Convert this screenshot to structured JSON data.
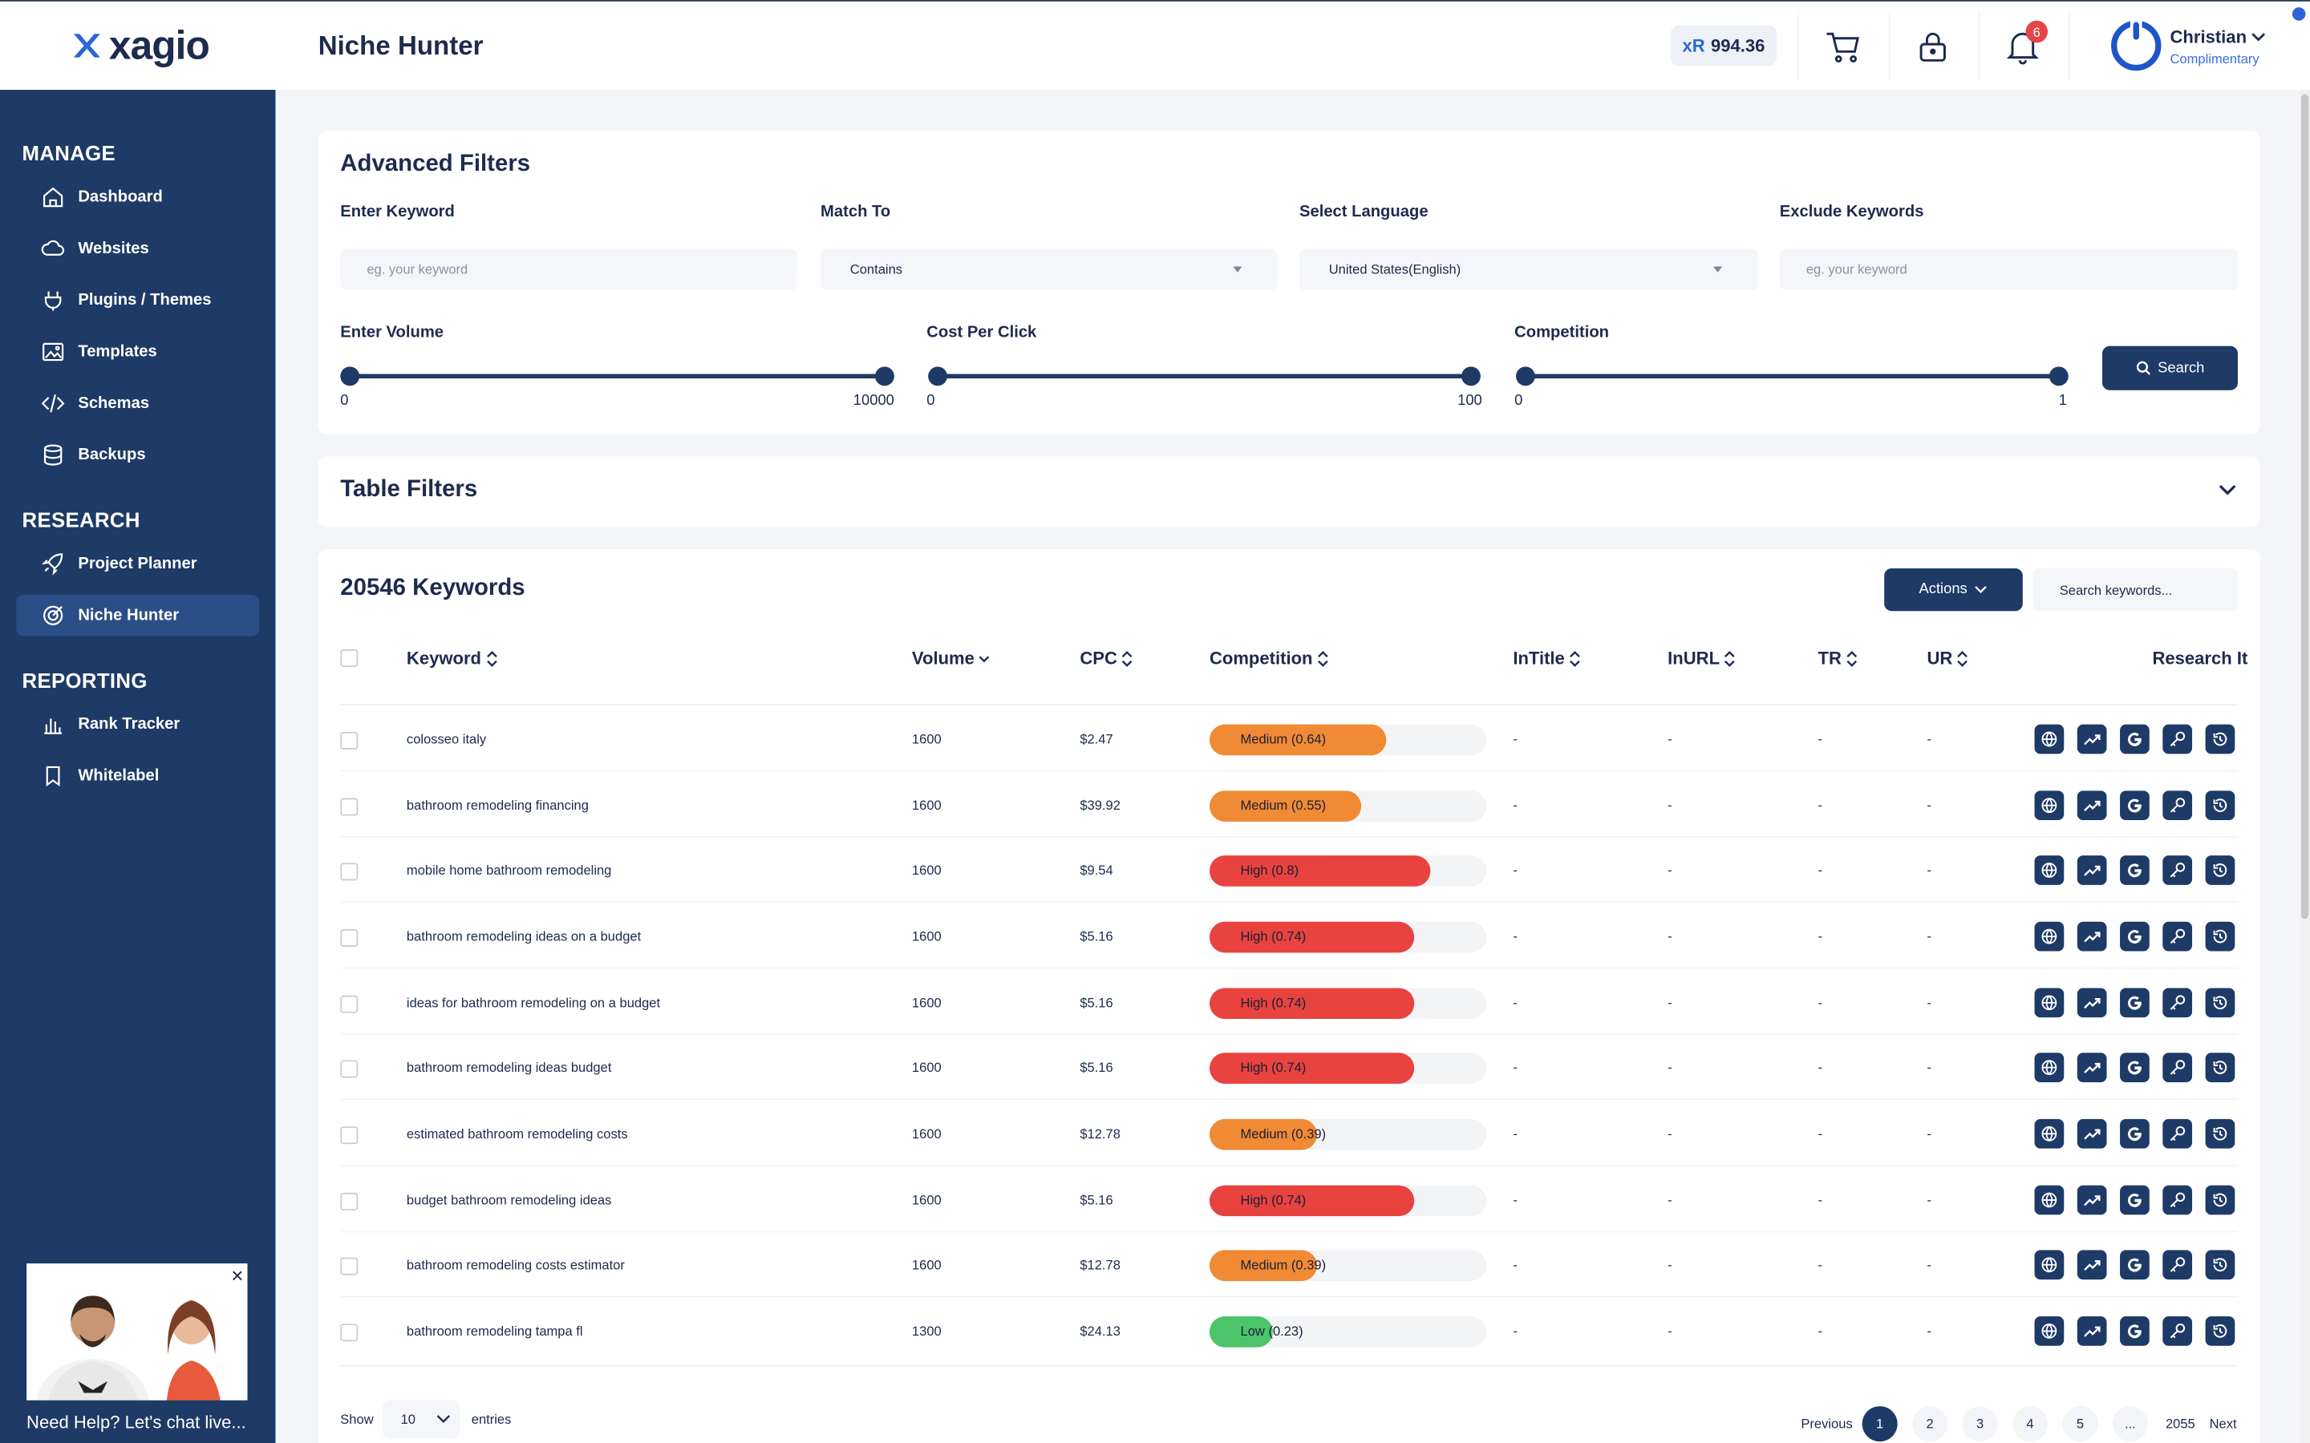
{
  "header": {
    "logo_text": "xagio",
    "page_title": "Niche Hunter",
    "credits_prefix": "xR",
    "credits_value": "994.36",
    "notifications_count": "6",
    "user_name": "Christian",
    "user_plan": "Complimentary"
  },
  "sidebar": {
    "sections": [
      {
        "title": "MANAGE",
        "items": [
          {
            "label": "Dashboard",
            "icon": "home-icon"
          },
          {
            "label": "Websites",
            "icon": "cloud-icon"
          },
          {
            "label": "Plugins / Themes",
            "icon": "plug-icon"
          },
          {
            "label": "Templates",
            "icon": "image-icon"
          },
          {
            "label": "Schemas",
            "icon": "code-icon"
          },
          {
            "label": "Backups",
            "icon": "database-icon"
          }
        ]
      },
      {
        "title": "RESEARCH",
        "items": [
          {
            "label": "Project Planner",
            "icon": "rocket-icon"
          },
          {
            "label": "Niche Hunter",
            "icon": "target-icon",
            "active": true
          }
        ]
      },
      {
        "title": "REPORTING",
        "items": [
          {
            "label": "Rank Tracker",
            "icon": "bar-chart-icon"
          },
          {
            "label": "Whitelabel",
            "icon": "bookmark-icon"
          }
        ]
      }
    ]
  },
  "chat": {
    "label": "Need Help? Let's chat live...",
    "close": "×"
  },
  "advanced_filters": {
    "title": "Advanced Filters",
    "keyword_label": "Enter Keyword",
    "keyword_placeholder": "eg. your keyword",
    "match_label": "Match To",
    "match_value": "Contains",
    "language_label": "Select Language",
    "language_value": "United States(English)",
    "exclude_label": "Exclude Keywords",
    "exclude_placeholder": "eg. your keyword",
    "volume_label": "Enter Volume",
    "volume_min": "0",
    "volume_max": "10000",
    "cpc_label": "Cost Per Click",
    "cpc_min": "0",
    "cpc_max": "100",
    "competition_label": "Competition",
    "competition_min": "0",
    "competition_max": "1",
    "search_label": "Search"
  },
  "table_filters": {
    "title": "Table Filters"
  },
  "keywords": {
    "title": "20546 Keywords",
    "actions_label": "Actions",
    "search_placeholder": "Search keywords...",
    "columns": {
      "keyword": "Keyword",
      "volume": "Volume",
      "cpc": "CPC",
      "competition": "Competition",
      "intitle": "InTitle",
      "inurl": "InURL",
      "tr": "TR",
      "ur": "UR",
      "research": "Research It"
    },
    "rows": [
      {
        "keyword": "colosseo italy",
        "volume": "1600",
        "cpc": "$2.47",
        "competition": "Medium (0.64)",
        "level": 0.64,
        "color": "#f08a34",
        "intitle": "-",
        "inurl": "-",
        "tr": "-",
        "ur": "-"
      },
      {
        "keyword": "bathroom remodeling financing",
        "volume": "1600",
        "cpc": "$39.92",
        "competition": "Medium (0.55)",
        "level": 0.55,
        "color": "#f08a34",
        "intitle": "-",
        "inurl": "-",
        "tr": "-",
        "ur": "-"
      },
      {
        "keyword": "mobile home bathroom remodeling",
        "volume": "1600",
        "cpc": "$9.54",
        "competition": "High (0.8)",
        "level": 0.8,
        "color": "#e8433f",
        "intitle": "-",
        "inurl": "-",
        "tr": "-",
        "ur": "-"
      },
      {
        "keyword": "bathroom remodeling ideas on a budget",
        "volume": "1600",
        "cpc": "$5.16",
        "competition": "High (0.74)",
        "level": 0.74,
        "color": "#e8433f",
        "intitle": "-",
        "inurl": "-",
        "tr": "-",
        "ur": "-"
      },
      {
        "keyword": "ideas for bathroom remodeling on a budget",
        "volume": "1600",
        "cpc": "$5.16",
        "competition": "High (0.74)",
        "level": 0.74,
        "color": "#e8433f",
        "intitle": "-",
        "inurl": "-",
        "tr": "-",
        "ur": "-"
      },
      {
        "keyword": "bathroom remodeling ideas budget",
        "volume": "1600",
        "cpc": "$5.16",
        "competition": "High (0.74)",
        "level": 0.74,
        "color": "#e8433f",
        "intitle": "-",
        "inurl": "-",
        "tr": "-",
        "ur": "-"
      },
      {
        "keyword": "estimated bathroom remodeling costs",
        "volume": "1600",
        "cpc": "$12.78",
        "competition": "Medium (0.39)",
        "level": 0.39,
        "color": "#f08a34",
        "intitle": "-",
        "inurl": "-",
        "tr": "-",
        "ur": "-"
      },
      {
        "keyword": "budget bathroom remodeling ideas",
        "volume": "1600",
        "cpc": "$5.16",
        "competition": "High (0.74)",
        "level": 0.74,
        "color": "#e8433f",
        "intitle": "-",
        "inurl": "-",
        "tr": "-",
        "ur": "-"
      },
      {
        "keyword": "bathroom remodeling costs estimator",
        "volume": "1600",
        "cpc": "$12.78",
        "competition": "Medium (0.39)",
        "level": 0.39,
        "color": "#f08a34",
        "intitle": "-",
        "inurl": "-",
        "tr": "-",
        "ur": "-"
      },
      {
        "keyword": "bathroom remodeling tampa fl",
        "volume": "1300",
        "cpc": "$24.13",
        "competition": "Low (0.23)",
        "level": 0.23,
        "color": "#4cc46a",
        "intitle": "-",
        "inurl": "-",
        "tr": "-",
        "ur": "-"
      }
    ],
    "research_icons": [
      "globe-icon",
      "trend-icon",
      "google-icon",
      "key-icon",
      "history-icon"
    ]
  },
  "pagination": {
    "show_label": "Show",
    "entries_value": "10",
    "entries_label": "entries",
    "previous": "Previous",
    "pages": [
      "1",
      "2",
      "3",
      "4",
      "5",
      "...",
      "2055"
    ],
    "next": "Next"
  }
}
